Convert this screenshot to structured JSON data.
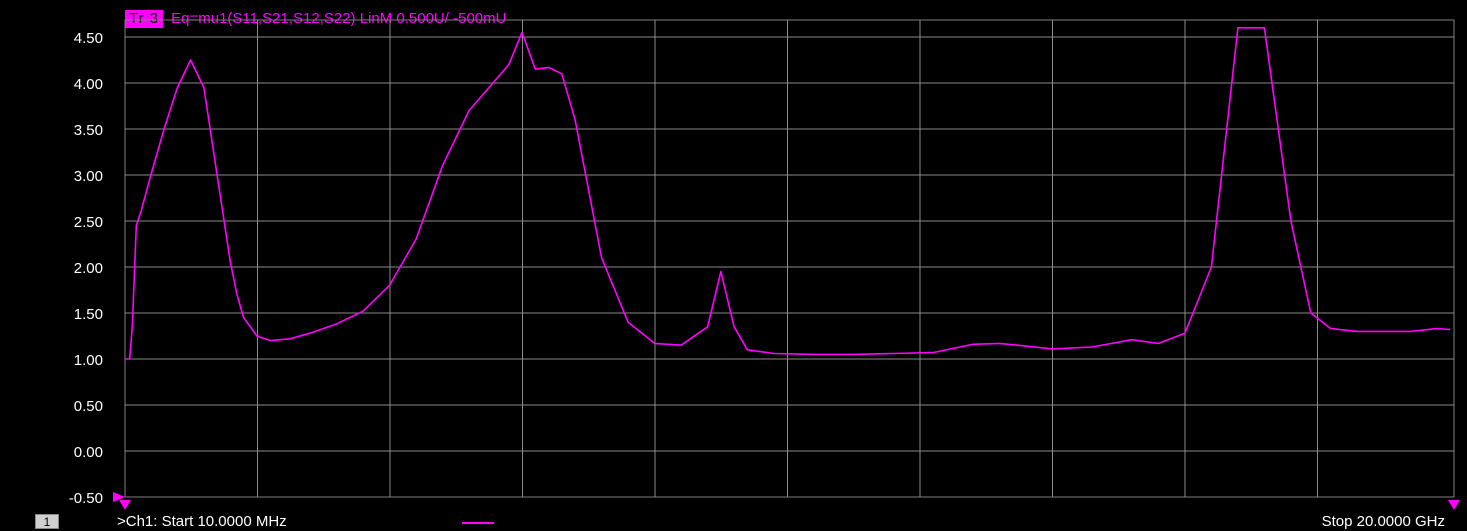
{
  "trace": {
    "badge": "Tr 3",
    "equation": "Eq=mu1(S11,S21,S12,S22) LinM 0.500U/  -500mU",
    "color": "#ff00ff"
  },
  "footer": {
    "channel_badge": "1",
    "start": ">Ch1:   Start  10.0000 MHz",
    "stop": "Stop  20.0000 GHz"
  },
  "chart_data": {
    "type": "line",
    "xlabel": "",
    "ylabel": "",
    "title": "",
    "x_unit": "GHz",
    "xlim": [
      0.01,
      20.0
    ],
    "ylim": [
      -0.5,
      4.5
    ],
    "grid": true,
    "yticks": [
      "4.50",
      "4.00",
      "3.50",
      "3.00",
      "2.50",
      "2.00",
      "1.50",
      "1.00",
      "0.50",
      "0.00",
      "-0.50"
    ],
    "ytick_values": [
      4.5,
      4.0,
      3.5,
      3.0,
      2.5,
      2.0,
      1.5,
      1.0,
      0.5,
      0.0,
      -0.5
    ],
    "x_divisions": 10,
    "series": [
      {
        "color": "#ff00ff",
        "x": [
          0.01,
          0.08,
          0.12,
          0.18,
          0.25,
          0.4,
          0.6,
          0.8,
          1.0,
          1.2,
          1.4,
          1.6,
          1.7,
          1.8,
          2.0,
          2.2,
          2.5,
          2.8,
          3.0,
          3.2,
          3.6,
          4.0,
          4.4,
          4.8,
          5.2,
          5.5,
          5.8,
          6.0,
          6.2,
          6.4,
          6.6,
          6.8,
          7.2,
          7.6,
          8.0,
          8.4,
          8.8,
          9.0,
          9.2,
          9.4,
          9.8,
          10.4,
          11.0,
          11.6,
          12.2,
          12.8,
          13.2,
          13.6,
          14.0,
          14.6,
          15.2,
          15.6,
          16.0,
          16.4,
          16.8,
          17.2,
          17.6,
          17.9,
          18.2,
          18.6,
          19.0,
          19.4,
          19.8,
          20.0
        ],
        "y": [
          1.0,
          1.0,
          1.35,
          2.45,
          2.6,
          3.0,
          3.5,
          3.95,
          4.25,
          3.95,
          3.0,
          2.05,
          1.7,
          1.45,
          1.25,
          1.2,
          1.22,
          1.28,
          1.33,
          1.38,
          1.52,
          1.8,
          2.3,
          3.1,
          3.7,
          3.95,
          4.2,
          4.55,
          4.15,
          4.17,
          4.1,
          3.6,
          2.1,
          1.4,
          1.17,
          1.15,
          1.35,
          1.95,
          1.35,
          1.1,
          1.06,
          1.05,
          1.05,
          1.06,
          1.07,
          1.16,
          1.17,
          1.14,
          1.11,
          1.13,
          1.21,
          1.17,
          1.28,
          2.0,
          4.6,
          4.6,
          2.5,
          1.5,
          1.33,
          1.3,
          1.3,
          1.3,
          1.33,
          1.32
        ]
      }
    ]
  }
}
